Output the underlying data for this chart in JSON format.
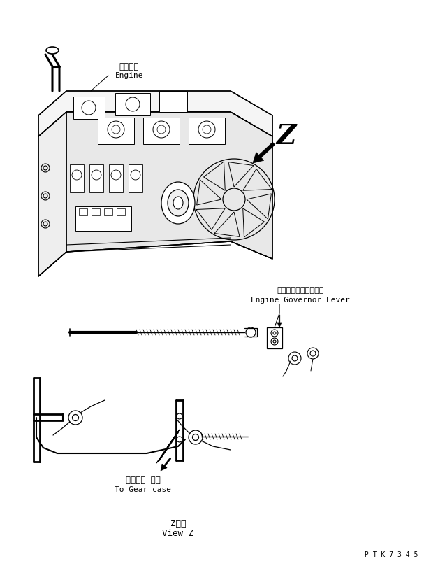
{
  "bg_color": "#ffffff",
  "line_color": "#000000",
  "fig_width": 6.07,
  "fig_height": 8.09,
  "dpi": 100,
  "labels": {
    "engine_jp": "エンジン",
    "engine_en": "Engine",
    "governor_jp": "エンジンガバナレバー",
    "governor_en": "Engine Governor Lever",
    "gearcase_jp": "ギヤケー スへ",
    "gearcase_en": "To Gear case",
    "view_jp": "Z　視",
    "view_en": "View Z",
    "part_num": "P T K 7 3 4 5"
  }
}
